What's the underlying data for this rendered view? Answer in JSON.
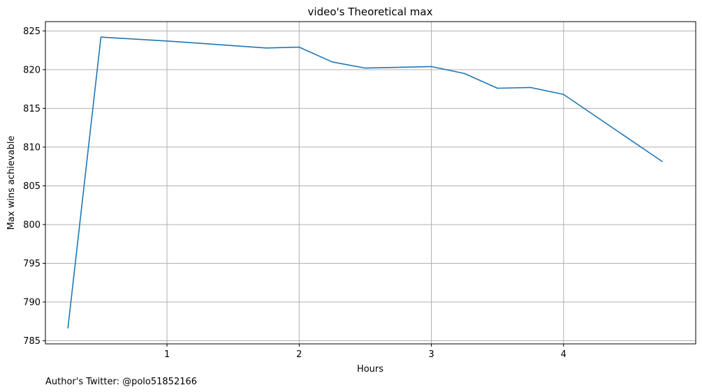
{
  "chart_data": {
    "type": "line",
    "title": "video's Theoretical max",
    "xlabel": "Hours",
    "ylabel": "Max wins achievable",
    "xlim": [
      0.08,
      5.0
    ],
    "ylim": [
      784.6,
      826.2
    ],
    "xticks": [
      1,
      2,
      3,
      4
    ],
    "xtick_labels": [
      "1",
      "2",
      "3",
      "4"
    ],
    "yticks": [
      785,
      790,
      795,
      800,
      805,
      810,
      815,
      820,
      825
    ],
    "ytick_labels": [
      "785",
      "790",
      "795",
      "800",
      "805",
      "810",
      "815",
      "820",
      "825"
    ],
    "grid": true,
    "series": [
      {
        "color": "#1f77b4",
        "x": [
          0.25,
          0.5,
          1.0,
          1.75,
          2.0,
          2.25,
          2.5,
          3.0,
          3.25,
          3.5,
          3.75,
          4.0,
          4.75
        ],
        "y": [
          786.6,
          824.2,
          823.7,
          822.8,
          822.9,
          821.0,
          820.2,
          820.4,
          819.5,
          817.6,
          817.7,
          816.8,
          808.1
        ]
      }
    ]
  },
  "footnote": "Author's Twitter: @polo51852166"
}
